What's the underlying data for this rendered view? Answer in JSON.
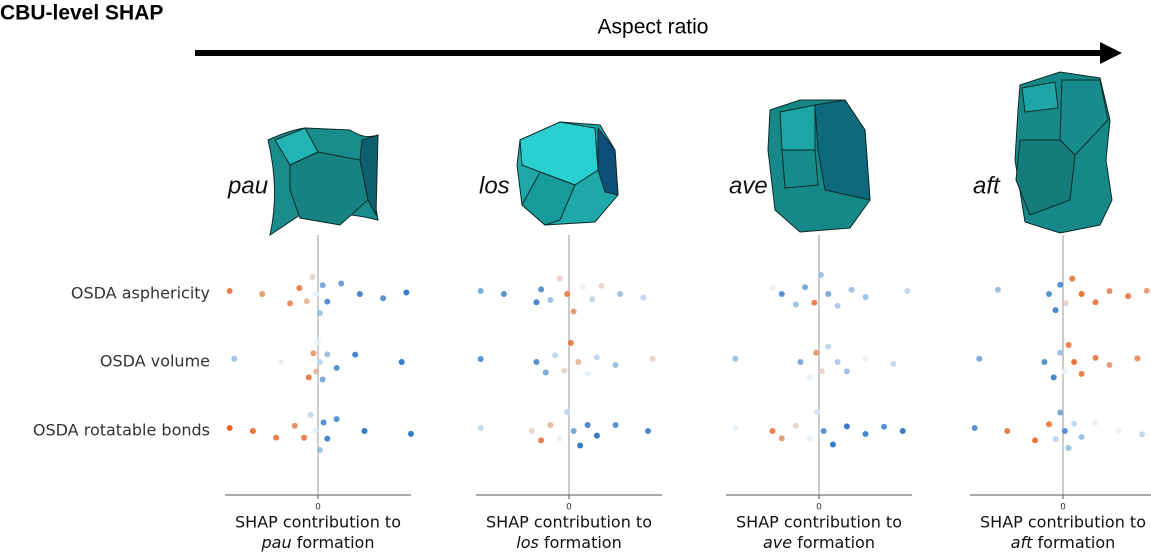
{
  "title": "CBU-level SHAP",
  "arrow_label": "Aspect ratio",
  "colormap": {
    "low": "#1f6fc2",
    "mid": "#e6eef7",
    "high": "#e8560f"
  },
  "chart_data": [
    {
      "type": "beeswarm",
      "name": "pau",
      "xlabel": "SHAP contribution to",
      "xlabel_end": "formation",
      "categories": [
        "OSDA asphericity",
        "OSDA volume",
        "OSDA rotatable bonds"
      ],
      "xlim": [
        -1,
        1
      ],
      "xticks": [
        0
      ],
      "rows": [
        {
          "values": [
            -0.95,
            -0.6,
            -0.3,
            -0.2,
            -0.12,
            -0.06,
            -0.02,
            0.02,
            0.05,
            0.1,
            0.25,
            0.45,
            0.7,
            0.95
          ],
          "feature_values": [
            0.9,
            0.8,
            0.85,
            0.9,
            0.7,
            0.6,
            0.5,
            0.3,
            0.2,
            0.1,
            0.15,
            0.05,
            0.1,
            0.0
          ]
        },
        {
          "values": [
            -0.9,
            -0.4,
            -0.1,
            -0.05,
            -0.02,
            0,
            0.02,
            0.05,
            0.1,
            0.2,
            0.4,
            0.9
          ],
          "feature_values": [
            0.3,
            0.5,
            0.9,
            0.8,
            0.7,
            0.5,
            0.4,
            0.2,
            0.3,
            0.1,
            0.05,
            0.0
          ]
        },
        {
          "values": [
            -0.95,
            -0.7,
            -0.45,
            -0.25,
            -0.15,
            -0.08,
            -0.03,
            0.02,
            0.06,
            0.1,
            0.2,
            0.5,
            1.0
          ],
          "feature_values": [
            1,
            0.95,
            0.9,
            0.85,
            0.9,
            0.4,
            0.5,
            0.3,
            0.1,
            0.05,
            0.1,
            0.0,
            0.0
          ]
        }
      ]
    },
    {
      "type": "beeswarm",
      "name": "los",
      "xlabel": "SHAP contribution to",
      "xlabel_end": "formation",
      "xlim": [
        -1,
        1
      ],
      "xticks": [
        0
      ],
      "rows": [
        {
          "values": [
            -0.95,
            -0.7,
            -0.35,
            -0.3,
            -0.2,
            -0.1,
            -0.02,
            0.05,
            0.15,
            0.25,
            0.35,
            0.55,
            0.8
          ],
          "feature_values": [
            0.2,
            0.1,
            0.05,
            0.1,
            0.3,
            0.6,
            0.9,
            0.8,
            0.5,
            0.4,
            0.6,
            0.3,
            0.4
          ]
        },
        {
          "values": [
            -0.95,
            -0.35,
            -0.25,
            -0.15,
            -0.05,
            0.02,
            0.1,
            0.2,
            0.3,
            0.5,
            0.9
          ],
          "feature_values": [
            0.1,
            0.1,
            0.2,
            0.4,
            0.6,
            0.9,
            0.7,
            0.5,
            0.4,
            0.3,
            0.6
          ]
        },
        {
          "values": [
            -0.95,
            -0.4,
            -0.3,
            -0.2,
            -0.1,
            -0.02,
            0.05,
            0.12,
            0.2,
            0.3,
            0.5,
            0.85
          ],
          "feature_values": [
            0.4,
            0.6,
            0.9,
            0.7,
            0.5,
            0.4,
            0.2,
            0.0,
            0.05,
            0.0,
            0.1,
            0.05
          ]
        }
      ]
    },
    {
      "type": "beeswarm",
      "name": "ave",
      "xlabel": "SHAP contribution to",
      "xlabel_end": "formation",
      "xlim": [
        -1,
        1
      ],
      "xticks": [
        0
      ],
      "rows": [
        {
          "values": [
            -0.5,
            -0.4,
            -0.25,
            -0.15,
            -0.05,
            0.02,
            0.1,
            0.2,
            0.35,
            0.5,
            0.95
          ],
          "feature_values": [
            0.5,
            0.1,
            0.3,
            0.2,
            0.9,
            0.3,
            0.2,
            0.35,
            0.3,
            0.3,
            0.4
          ]
        },
        {
          "values": [
            -0.9,
            -0.2,
            -0.1,
            -0.03,
            0.03,
            0.1,
            0.2,
            0.3,
            0.5,
            0.8
          ],
          "feature_values": [
            0.3,
            0.2,
            0.5,
            0.8,
            0.6,
            0.4,
            0.35,
            0.3,
            0.5,
            0.4
          ]
        },
        {
          "values": [
            -0.9,
            -0.5,
            -0.4,
            -0.25,
            -0.1,
            -0.02,
            0.05,
            0.15,
            0.3,
            0.5,
            0.7,
            0.9
          ],
          "feature_values": [
            0.5,
            0.9,
            0.8,
            0.6,
            0.5,
            0.45,
            0.1,
            0.0,
            0.0,
            0.05,
            0.1,
            0.0
          ]
        }
      ]
    },
    {
      "type": "beeswarm",
      "name": "aft",
      "xlabel": "SHAP contribution to",
      "xlabel_end": "formation",
      "xlim": [
        -1,
        1
      ],
      "xticks": [
        0
      ],
      "rows": [
        {
          "values": [
            -0.7,
            -0.15,
            -0.08,
            -0.03,
            0.03,
            0.1,
            0.2,
            0.35,
            0.5,
            0.7,
            0.9
          ],
          "feature_values": [
            0.3,
            0.1,
            0.05,
            0.1,
            0.6,
            0.9,
            0.95,
            0.9,
            0.85,
            0.9,
            0.8
          ]
        },
        {
          "values": [
            -0.9,
            -0.2,
            -0.1,
            -0.03,
            0.02,
            0.06,
            0.12,
            0.2,
            0.35,
            0.5,
            0.8
          ],
          "feature_values": [
            0.2,
            0.1,
            0.05,
            0.3,
            0.5,
            0.9,
            0.95,
            0.9,
            0.9,
            0.8,
            0.85
          ]
        },
        {
          "values": [
            -0.95,
            -0.6,
            -0.3,
            -0.15,
            -0.08,
            -0.03,
            0.02,
            0.06,
            0.12,
            0.2,
            0.35,
            0.6,
            0.85
          ],
          "feature_values": [
            0.1,
            0.9,
            0.95,
            0.9,
            0.4,
            0.2,
            0.1,
            0.3,
            0.4,
            0.3,
            0.5,
            0.5,
            0.4
          ]
        }
      ]
    }
  ]
}
